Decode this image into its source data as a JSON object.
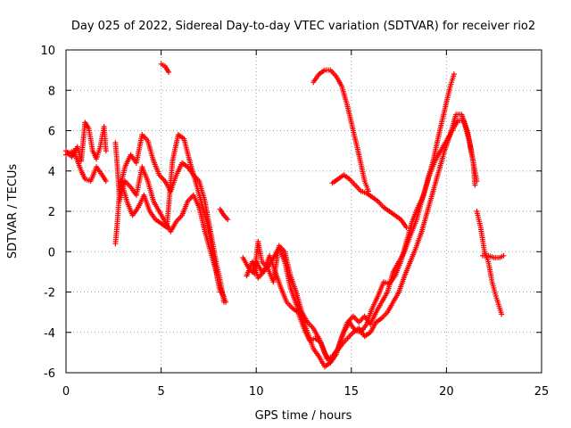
{
  "chart_data": {
    "type": "scatter",
    "title": "Day 025 of 2022, Sidereal Day-to-day VTEC variation (SDTVAR) for receiver rio2",
    "xlabel": "GPS time / hours",
    "ylabel": "SDTVAR / TECUs",
    "xlim": [
      0,
      25
    ],
    "ylim": [
      -6,
      10
    ],
    "xticks": [
      "0",
      "5",
      "10",
      "15",
      "20",
      "25"
    ],
    "yticks": [
      "-6",
      "-4",
      "-2",
      "0",
      "2",
      "4",
      "6",
      "8",
      "10"
    ],
    "grid": true,
    "marker": "+",
    "marker_color": "#ff0000",
    "series": [
      {
        "points": [
          [
            0.0,
            5.0
          ],
          [
            0.3,
            4.7
          ],
          [
            0.6,
            5.2
          ],
          [
            0.8,
            4.5
          ],
          [
            1.0,
            6.4
          ],
          [
            1.2,
            6.1
          ],
          [
            1.4,
            5.0
          ],
          [
            1.6,
            4.6
          ],
          [
            1.8,
            5.2
          ],
          [
            2.0,
            6.2
          ],
          [
            2.1,
            5.0
          ]
        ]
      },
      {
        "points": [
          [
            0.0,
            4.8
          ],
          [
            0.4,
            5.0
          ],
          [
            0.8,
            4.0
          ],
          [
            1.0,
            3.6
          ],
          [
            1.3,
            3.5
          ],
          [
            1.6,
            4.2
          ],
          [
            1.9,
            3.8
          ],
          [
            2.1,
            3.5
          ]
        ]
      },
      {
        "points": [
          [
            2.6,
            5.4
          ],
          [
            2.7,
            4.2
          ],
          [
            2.8,
            2.8
          ],
          [
            2.7,
            1.5
          ],
          [
            2.6,
            0.4
          ]
        ]
      },
      {
        "points": [
          [
            2.8,
            3.0
          ],
          [
            3.1,
            4.2
          ],
          [
            3.4,
            4.8
          ],
          [
            3.7,
            4.4
          ],
          [
            4.0,
            5.8
          ],
          [
            4.3,
            5.5
          ],
          [
            4.6,
            4.5
          ],
          [
            4.9,
            3.8
          ],
          [
            5.2,
            3.5
          ],
          [
            5.5,
            3.0
          ],
          [
            5.8,
            3.8
          ],
          [
            6.1,
            4.4
          ],
          [
            6.4,
            4.2
          ],
          [
            6.7,
            3.8
          ],
          [
            7.0,
            3.5
          ],
          [
            7.3,
            2.5
          ],
          [
            7.6,
            1.0
          ],
          [
            7.9,
            -0.6
          ],
          [
            8.1,
            -1.4
          ],
          [
            8.3,
            -2.5
          ]
        ]
      },
      {
        "points": [
          [
            2.8,
            2.5
          ],
          [
            3.1,
            3.5
          ],
          [
            3.4,
            3.2
          ],
          [
            3.7,
            2.8
          ],
          [
            4.0,
            4.2
          ],
          [
            4.3,
            3.5
          ],
          [
            4.6,
            2.5
          ],
          [
            4.9,
            2.0
          ],
          [
            5.2,
            1.5
          ],
          [
            5.5,
            1.0
          ],
          [
            5.8,
            1.5
          ],
          [
            6.1,
            1.8
          ],
          [
            6.4,
            2.5
          ],
          [
            6.7,
            2.8
          ],
          [
            7.0,
            2.2
          ],
          [
            7.3,
            1.0
          ],
          [
            7.6,
            0.0
          ],
          [
            7.9,
            -1.0
          ],
          [
            8.1,
            -2.0
          ]
        ]
      },
      {
        "points": [
          [
            2.9,
            3.5
          ],
          [
            3.2,
            2.5
          ],
          [
            3.5,
            1.8
          ],
          [
            3.8,
            2.2
          ],
          [
            4.1,
            2.8
          ],
          [
            4.4,
            2.0
          ],
          [
            4.7,
            1.6
          ],
          [
            5.0,
            1.4
          ],
          [
            5.3,
            1.2
          ],
          [
            5.6,
            4.5
          ],
          [
            5.9,
            5.8
          ],
          [
            6.2,
            5.6
          ],
          [
            6.5,
            4.5
          ],
          [
            6.8,
            3.5
          ],
          [
            7.1,
            2.5
          ],
          [
            7.4,
            1.5
          ],
          [
            7.7,
            0.0
          ],
          [
            8.0,
            -1.5
          ],
          [
            8.4,
            -2.5
          ]
        ]
      },
      {
        "points": [
          [
            5.0,
            9.3
          ],
          [
            5.2,
            9.2
          ],
          [
            5.4,
            8.9
          ]
        ]
      },
      {
        "points": [
          [
            8.1,
            2.1
          ],
          [
            8.3,
            1.8
          ],
          [
            8.5,
            1.6
          ]
        ]
      },
      {
        "points": [
          [
            9.3,
            -0.3
          ],
          [
            9.6,
            -0.8
          ],
          [
            9.9,
            -1.1
          ],
          [
            10.1,
            0.5
          ],
          [
            10.3,
            -0.5
          ],
          [
            10.6,
            -0.8
          ],
          [
            10.9,
            -1.5
          ],
          [
            11.2,
            0.3
          ],
          [
            11.5,
            0.0
          ],
          [
            11.8,
            -1.2
          ],
          [
            12.1,
            -2.0
          ],
          [
            12.4,
            -3.0
          ],
          [
            12.7,
            -3.5
          ],
          [
            13.0,
            -3.8
          ],
          [
            13.3,
            -4.3
          ],
          [
            13.6,
            -5.0
          ],
          [
            13.9,
            -5.5
          ],
          [
            14.2,
            -5.1
          ],
          [
            14.5,
            -4.2
          ],
          [
            14.8,
            -3.5
          ],
          [
            15.1,
            -3.2
          ],
          [
            15.4,
            -3.5
          ],
          [
            15.7,
            -3.2
          ],
          [
            16.0,
            -3.6
          ],
          [
            16.3,
            -3.0
          ],
          [
            16.6,
            -2.5
          ],
          [
            16.9,
            -2.0
          ],
          [
            17.2,
            -1.0
          ],
          [
            17.5,
            -0.5
          ],
          [
            17.8,
            0.0
          ],
          [
            18.1,
            0.8
          ],
          [
            18.4,
            1.5
          ],
          [
            18.7,
            2.5
          ],
          [
            19.0,
            3.5
          ],
          [
            19.3,
            4.5
          ],
          [
            19.6,
            5.8
          ],
          [
            19.9,
            7.0
          ],
          [
            20.2,
            8.2
          ],
          [
            20.4,
            8.8
          ]
        ]
      },
      {
        "points": [
          [
            9.5,
            -1.2
          ],
          [
            9.8,
            -0.5
          ],
          [
            10.1,
            -1.3
          ],
          [
            10.4,
            -1.0
          ],
          [
            10.7,
            -0.2
          ],
          [
            11.0,
            -1.0
          ],
          [
            11.3,
            -1.8
          ],
          [
            11.6,
            -2.5
          ],
          [
            11.9,
            -2.8
          ],
          [
            12.2,
            -3.0
          ],
          [
            12.5,
            -3.8
          ],
          [
            12.8,
            -4.4
          ],
          [
            13.1,
            -4.3
          ],
          [
            13.4,
            -4.5
          ],
          [
            13.7,
            -5.3
          ],
          [
            14.0,
            -5.2
          ],
          [
            14.3,
            -4.8
          ],
          [
            14.6,
            -4.0
          ],
          [
            14.9,
            -3.5
          ],
          [
            15.2,
            -3.9
          ],
          [
            15.5,
            -4.0
          ],
          [
            15.8,
            -3.6
          ],
          [
            16.1,
            -2.8
          ],
          [
            16.4,
            -2.2
          ],
          [
            16.7,
            -1.5
          ],
          [
            17.0,
            -1.6
          ],
          [
            17.3,
            -1.2
          ],
          [
            17.6,
            -0.5
          ],
          [
            17.9,
            0.5
          ],
          [
            18.2,
            1.5
          ],
          [
            18.5,
            2.2
          ],
          [
            18.8,
            2.8
          ],
          [
            19.1,
            3.8
          ],
          [
            19.4,
            4.5
          ],
          [
            19.7,
            5.0
          ],
          [
            20.0,
            5.5
          ],
          [
            20.3,
            6.0
          ],
          [
            20.6,
            6.5
          ],
          [
            20.9,
            6.5
          ],
          [
            21.2,
            5.5
          ],
          [
            21.4,
            4.5
          ],
          [
            21.6,
            3.5
          ]
        ]
      },
      {
        "points": [
          [
            10.0,
            -0.5
          ],
          [
            10.3,
            -1.0
          ],
          [
            10.6,
            -0.8
          ],
          [
            10.9,
            -0.3
          ],
          [
            11.2,
            0.2
          ],
          [
            11.5,
            -0.5
          ],
          [
            11.8,
            -1.8
          ],
          [
            12.1,
            -2.6
          ],
          [
            12.4,
            -3.2
          ],
          [
            12.7,
            -4.0
          ],
          [
            13.0,
            -4.8
          ],
          [
            13.3,
            -5.2
          ],
          [
            13.6,
            -5.7
          ],
          [
            13.9,
            -5.5
          ],
          [
            14.2,
            -5.0
          ],
          [
            14.5,
            -4.6
          ],
          [
            14.8,
            -4.3
          ],
          [
            15.1,
            -4.0
          ],
          [
            15.4,
            -3.8
          ],
          [
            15.7,
            -4.2
          ],
          [
            16.0,
            -4.0
          ],
          [
            16.3,
            -3.5
          ],
          [
            16.6,
            -3.3
          ],
          [
            16.9,
            -3.0
          ],
          [
            17.2,
            -2.5
          ],
          [
            17.5,
            -2.0
          ],
          [
            17.8,
            -1.2
          ],
          [
            18.1,
            -0.5
          ],
          [
            18.4,
            0.2
          ],
          [
            18.7,
            1.0
          ],
          [
            19.0,
            2.0
          ],
          [
            19.3,
            3.0
          ],
          [
            19.6,
            4.0
          ],
          [
            19.9,
            5.0
          ],
          [
            20.2,
            5.8
          ],
          [
            20.5,
            6.8
          ],
          [
            20.8,
            6.8
          ],
          [
            21.1,
            6.0
          ],
          [
            21.4,
            4.5
          ],
          [
            21.5,
            3.3
          ]
        ]
      },
      {
        "points": [
          [
            13.0,
            8.4
          ],
          [
            13.3,
            8.8
          ],
          [
            13.6,
            9.0
          ],
          [
            13.9,
            9.0
          ],
          [
            14.2,
            8.7
          ],
          [
            14.5,
            8.2
          ],
          [
            14.8,
            7.2
          ],
          [
            15.1,
            6.0
          ],
          [
            15.4,
            4.8
          ],
          [
            15.7,
            3.5
          ],
          [
            15.9,
            3.0
          ]
        ]
      },
      {
        "points": [
          [
            14.0,
            3.4
          ],
          [
            14.3,
            3.6
          ],
          [
            14.6,
            3.8
          ],
          [
            14.9,
            3.6
          ],
          [
            15.2,
            3.3
          ],
          [
            15.5,
            3.0
          ],
          [
            15.8,
            2.9
          ],
          [
            16.1,
            2.7
          ],
          [
            16.4,
            2.5
          ],
          [
            16.7,
            2.2
          ],
          [
            17.0,
            2.0
          ],
          [
            17.3,
            1.8
          ],
          [
            17.6,
            1.6
          ],
          [
            17.9,
            1.2
          ]
        ]
      },
      {
        "points": [
          [
            21.6,
            2.0
          ],
          [
            21.8,
            1.2
          ],
          [
            22.0,
            0.0
          ],
          [
            22.2,
            -0.5
          ],
          [
            22.4,
            -1.5
          ],
          [
            22.6,
            -2.2
          ],
          [
            22.8,
            -2.8
          ],
          [
            22.9,
            -3.1
          ]
        ]
      },
      {
        "points": [
          [
            21.9,
            -0.2
          ],
          [
            22.2,
            -0.2
          ],
          [
            22.5,
            -0.3
          ],
          [
            22.8,
            -0.3
          ],
          [
            23.0,
            -0.2
          ]
        ]
      }
    ]
  }
}
